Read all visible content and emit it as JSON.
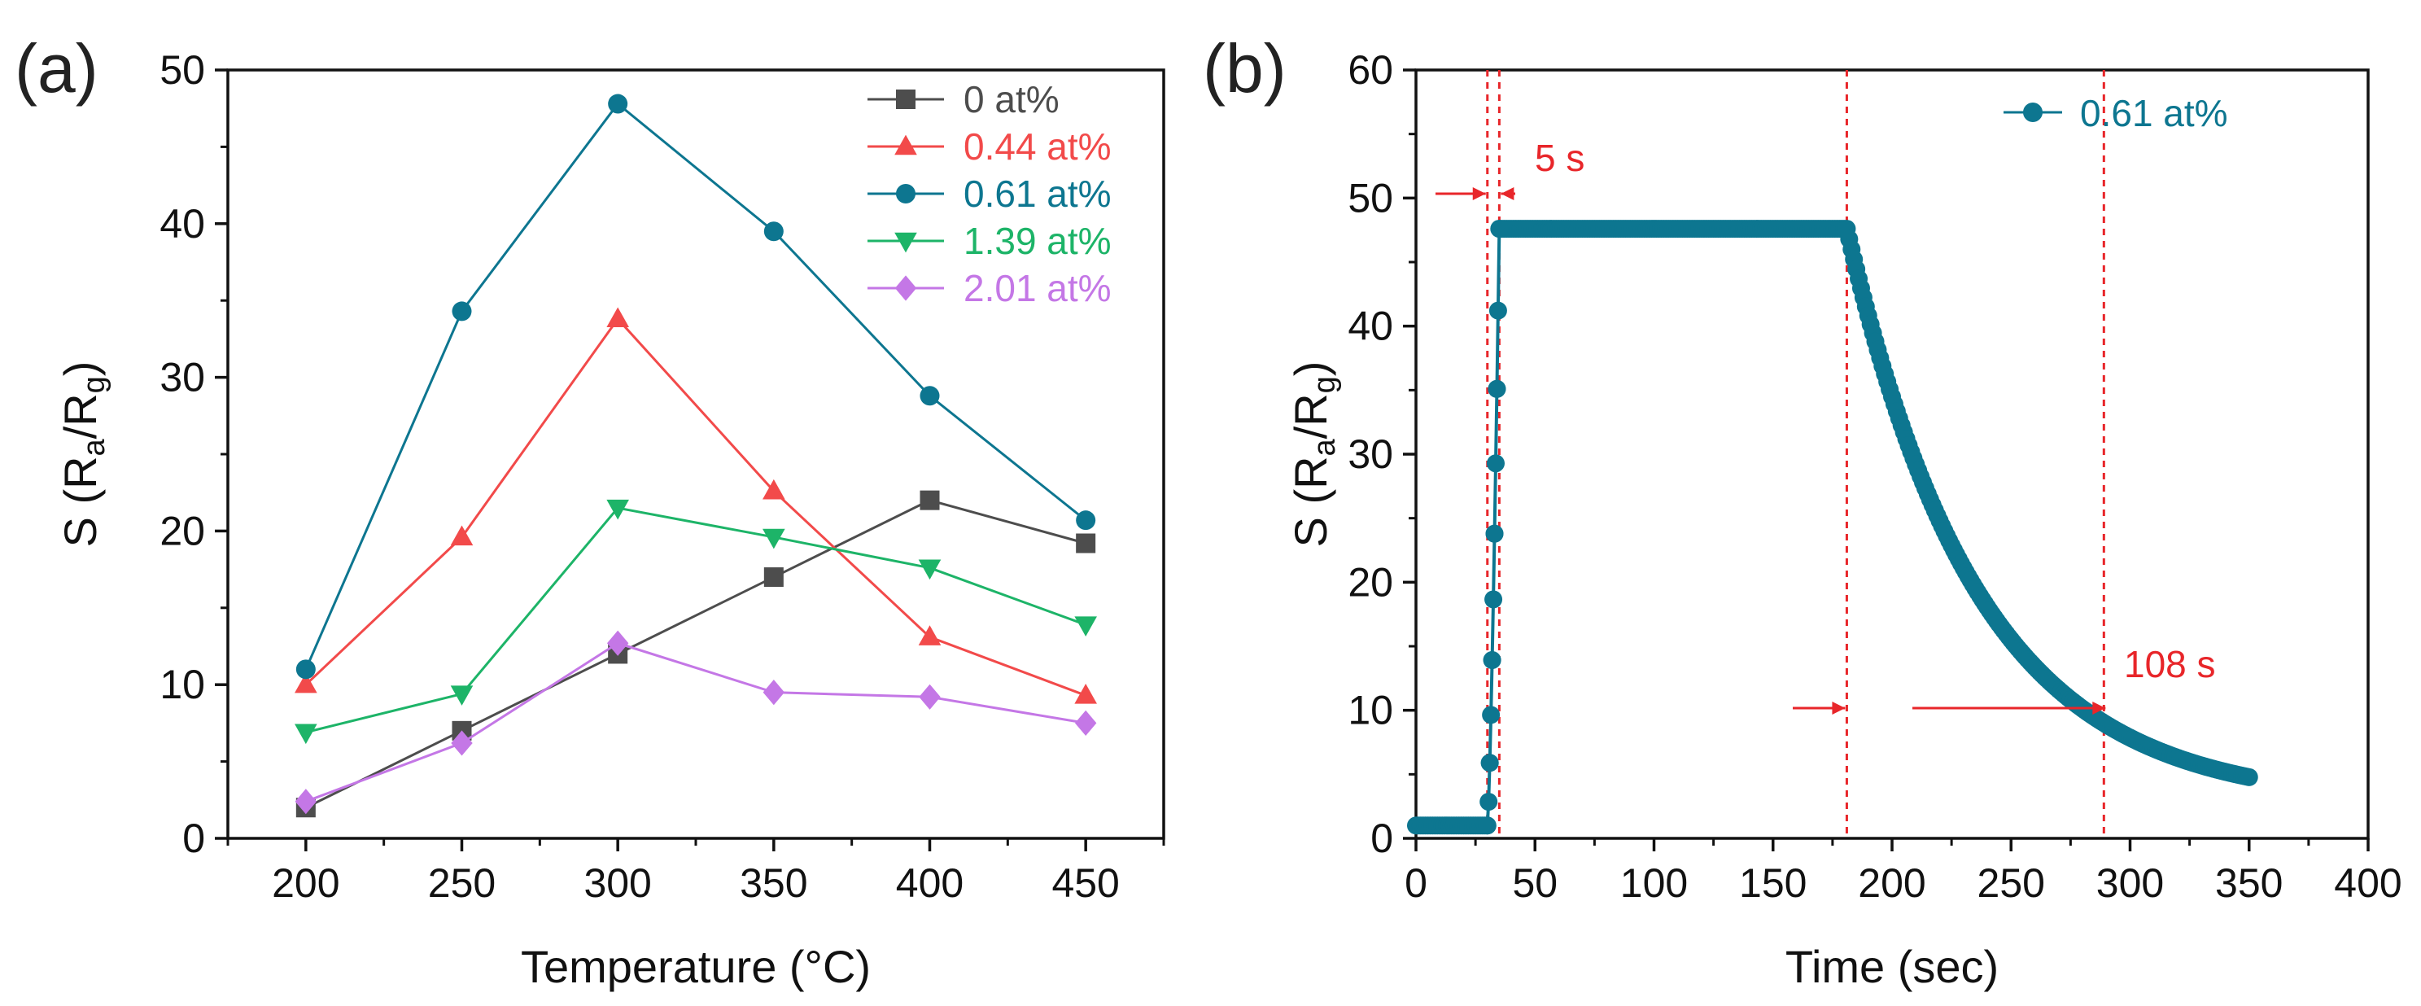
{
  "chart_data": [
    {
      "panel_label": "(a)",
      "type": "line",
      "xlabel": "Temperature (°C)",
      "ylabel": "S (Ra/Rg)",
      "ylabel_parts": {
        "prefix": "S (R",
        "sub1": "a",
        "mid": "/R",
        "sub2": "g",
        "suffix": ")"
      },
      "xlim": [
        175,
        475
      ],
      "ylim": [
        0,
        50
      ],
      "xticks": [
        200,
        250,
        300,
        350,
        400,
        450
      ],
      "yticks": [
        0,
        10,
        20,
        30,
        40,
        50
      ],
      "x": [
        200,
        250,
        300,
        350,
        400,
        450
      ],
      "series": [
        {
          "name": "0 at%",
          "color": "#4d4d4d",
          "marker": "square",
          "values": [
            2.0,
            7.0,
            12.0,
            17.0,
            22.0,
            19.2
          ]
        },
        {
          "name": "0.44 at%",
          "color": "#f24a4a",
          "marker": "triangle-up",
          "values": [
            10.0,
            19.6,
            33.8,
            22.6,
            13.1,
            9.3
          ]
        },
        {
          "name": "0.61 at%",
          "color": "#0d7690",
          "marker": "circle",
          "values": [
            11.0,
            34.3,
            47.8,
            39.5,
            28.8,
            20.7
          ]
        },
        {
          "name": "1.39 at%",
          "color": "#1db468",
          "marker": "triangle-down",
          "values": [
            6.9,
            9.4,
            21.5,
            19.6,
            17.6,
            13.9
          ]
        },
        {
          "name": "2.01 at%",
          "color": "#c477e6",
          "marker": "diamond",
          "values": [
            2.4,
            6.2,
            12.7,
            9.5,
            9.2,
            7.5
          ]
        }
      ],
      "legend": "top-right"
    },
    {
      "panel_label": "(b)",
      "type": "scatter",
      "xlabel": "Time (sec)",
      "ylabel": "S (Ra/Rg)",
      "ylabel_parts": {
        "prefix": "S (R",
        "sub1": "a",
        "mid": "/R",
        "sub2": "g",
        "suffix": ")"
      },
      "xlim": [
        0,
        400
      ],
      "ylim": [
        0,
        60
      ],
      "xticks": [
        0,
        50,
        100,
        150,
        200,
        250,
        300,
        350,
        400
      ],
      "yticks": [
        0,
        10,
        20,
        30,
        40,
        50,
        60
      ],
      "series": [
        {
          "name": "0.61 at%",
          "color": "#0d7690",
          "marker": "circle",
          "style": "line-with-markers",
          "response": {
            "baseline": 1.0,
            "gas_on": 30,
            "rise_end": 35,
            "plateau": 47.6,
            "gas_off": 181,
            "end": 350,
            "final": 2.7,
            "decay_tau": 55
          }
        }
      ],
      "vlines_x": [
        30,
        35,
        181,
        289
      ],
      "vline_color": "#e8262a",
      "annotations": [
        {
          "text": "5 s",
          "x": 0,
          "y": 0
        },
        {
          "text": "108 s",
          "x": 0,
          "y": 0
        }
      ],
      "legend": "top-right"
    }
  ]
}
